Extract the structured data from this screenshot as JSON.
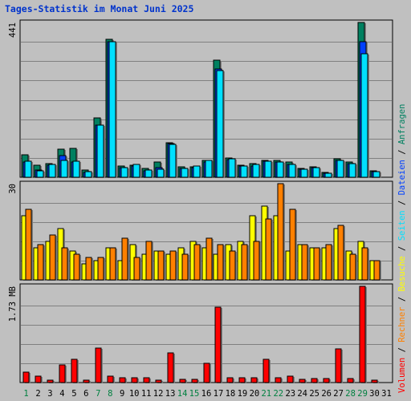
{
  "title": "Tages-Statistik im Monat Juni 2025",
  "colors": {
    "anfragen": "#008060",
    "dateien": "#0040ff",
    "seiten": "#00e0ff",
    "besuche": "#ffff00",
    "rechner": "#ff8000",
    "volumen": "#ff0000",
    "weekend_label": "#008040",
    "weekday_label": "#000000",
    "background": "#c0c0c0"
  },
  "chart_data": [
    {
      "type": "bar",
      "ylabel": "441",
      "ylim": [
        0,
        441
      ],
      "categories": [
        "1",
        "2",
        "3",
        "4",
        "5",
        "6",
        "7",
        "8",
        "9",
        "10",
        "11",
        "12",
        "13",
        "14",
        "15",
        "16",
        "17",
        "18",
        "19",
        "20",
        "21",
        "22",
        "23",
        "24",
        "25",
        "26",
        "27",
        "28",
        "29",
        "30",
        "31"
      ],
      "series": [
        {
          "name": "Anfragen",
          "values": [
            63,
            34,
            39,
            80,
            83,
            21,
            169,
            394,
            33,
            34,
            25,
            44,
            98,
            29,
            30,
            48,
            333,
            54,
            35,
            38,
            48,
            47,
            44,
            26,
            30,
            14,
            53,
            43,
            441,
            19,
            0
          ]
        },
        {
          "name": "Dateien",
          "values": [
            43,
            20,
            35,
            61,
            44,
            14,
            149,
            387,
            27,
            32,
            19,
            27,
            95,
            26,
            28,
            44,
            308,
            50,
            31,
            33,
            45,
            43,
            36,
            22,
            27,
            12,
            48,
            39,
            386,
            17,
            0
          ]
        },
        {
          "name": "Seiten",
          "values": [
            46,
            19,
            37,
            48,
            45,
            16,
            148,
            387,
            27,
            36,
            21,
            22,
            93,
            26,
            31,
            47,
            304,
            52,
            33,
            36,
            45,
            44,
            36,
            22,
            27,
            12,
            48,
            39,
            352,
            17,
            0
          ]
        }
      ]
    },
    {
      "type": "bar",
      "ylabel": "30",
      "ylim": [
        0,
        30
      ],
      "categories": [
        "1",
        "2",
        "3",
        "4",
        "5",
        "6",
        "7",
        "8",
        "9",
        "10",
        "11",
        "12",
        "13",
        "14",
        "15",
        "16",
        "17",
        "18",
        "19",
        "20",
        "21",
        "22",
        "23",
        "24",
        "25",
        "26",
        "27",
        "28",
        "29",
        "30",
        "31"
      ],
      "series": [
        {
          "name": "Besuche",
          "values": [
            20,
            10,
            12,
            16,
            9,
            5,
            6,
            10,
            6,
            11,
            8,
            9,
            8,
            10,
            12,
            10,
            8,
            11,
            12,
            20,
            23,
            20,
            9,
            11,
            10,
            10,
            16,
            9,
            12,
            6,
            0
          ]
        },
        {
          "name": "Rechner",
          "values": [
            22,
            11,
            14,
            10,
            8,
            7,
            7,
            10,
            13,
            7,
            12,
            9,
            9,
            8,
            11,
            13,
            11,
            9,
            11,
            12,
            19,
            30,
            22,
            11,
            10,
            11,
            17,
            8,
            10,
            6,
            0
          ]
        }
      ]
    },
    {
      "type": "bar",
      "ylabel": "1.73 MB",
      "ylim": [
        0,
        1.73
      ],
      "categories": [
        "1",
        "2",
        "3",
        "4",
        "5",
        "6",
        "7",
        "8",
        "9",
        "10",
        "11",
        "12",
        "13",
        "14",
        "15",
        "16",
        "17",
        "18",
        "19",
        "20",
        "21",
        "22",
        "23",
        "24",
        "25",
        "26",
        "27",
        "28",
        "29",
        "30",
        "31"
      ],
      "series": [
        {
          "name": "Volumen",
          "values": [
            0.19,
            0.12,
            0.05,
            0.32,
            0.42,
            0.05,
            0.62,
            0.12,
            0.08,
            0.08,
            0.08,
            0.05,
            0.54,
            0.06,
            0.06,
            0.35,
            1.36,
            0.08,
            0.08,
            0.08,
            0.42,
            0.09,
            0.12,
            0.06,
            0.07,
            0.07,
            0.6,
            0.07,
            1.73,
            0.04,
            0
          ]
        }
      ]
    }
  ],
  "legend": {
    "items": [
      "Volumen",
      "Rechner",
      "Besuche",
      "Seiten",
      "Dateien",
      "Anfragen"
    ],
    "separator": "/"
  },
  "weekend_days": [
    1,
    7,
    8,
    14,
    15,
    21,
    22,
    28,
    29
  ]
}
